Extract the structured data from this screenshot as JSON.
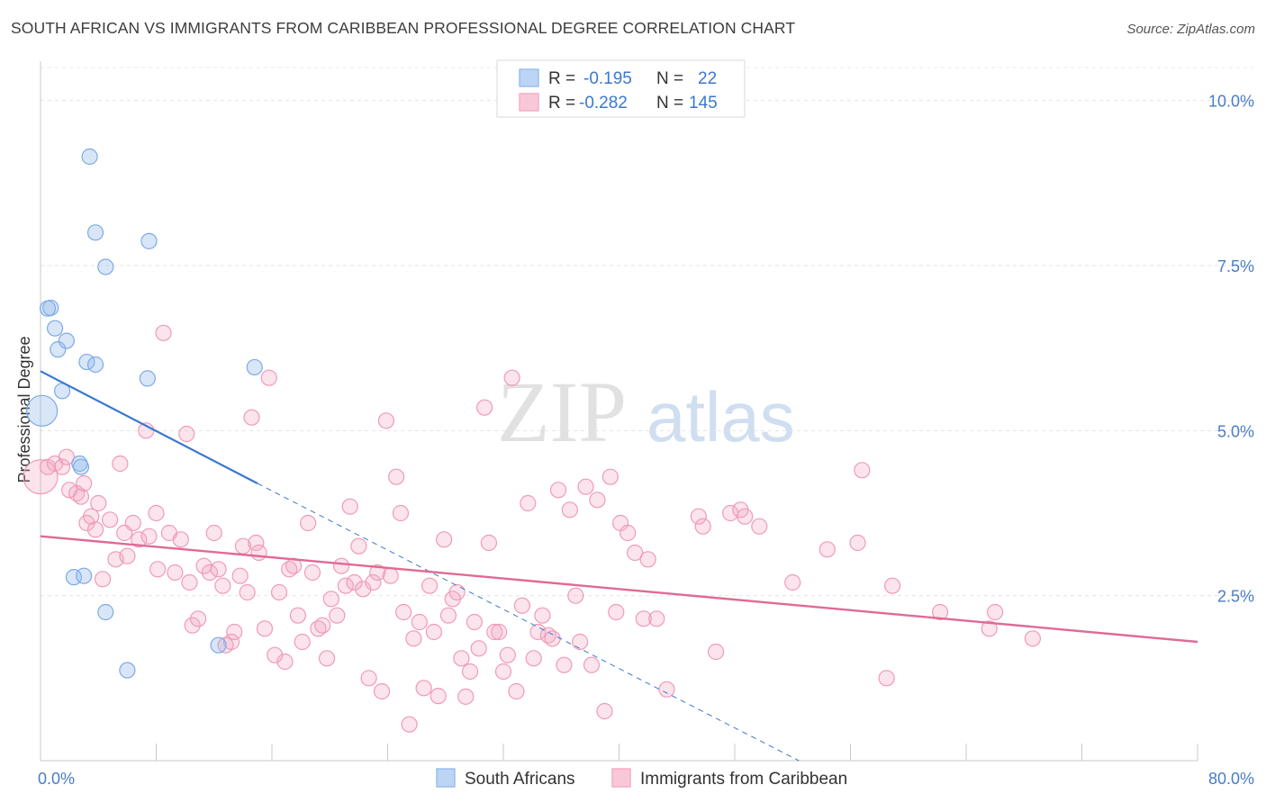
{
  "header": {
    "title": "SOUTH AFRICAN VS IMMIGRANTS FROM CARIBBEAN PROFESSIONAL DEGREE CORRELATION CHART",
    "source": "Source: ZipAtlas.com"
  },
  "watermark": {
    "zip": "ZIP",
    "atlas": "atlas"
  },
  "legend": {
    "r_label": "R =",
    "n_label": "N =",
    "rows": [
      {
        "r": "-0.195",
        "n": "22"
      },
      {
        "r": "-0.282",
        "n": "145"
      }
    ]
  },
  "chart_data": {
    "type": "scatter",
    "title": "SOUTH AFRICAN VS IMMIGRANTS FROM CARIBBEAN PROFESSIONAL DEGREE CORRELATION CHART",
    "xlabel": "",
    "ylabel": "Professional Degree",
    "xlim": [
      0,
      80
    ],
    "ylim": [
      0,
      10.5
    ],
    "x_tick_labels": [
      "0.0%",
      "80.0%"
    ],
    "y_tick_labels": [
      "2.5%",
      "5.0%",
      "7.5%",
      "10.0%"
    ],
    "y_tick_values": [
      2.5,
      5.0,
      7.5,
      10.0
    ],
    "grid": true,
    "legend_position": "bottom",
    "colors": {
      "south_africans": "#8fb8ec",
      "caribbean": "#f3a5bf",
      "blue_line": "#3a78d0",
      "pink_line": "#e06a96"
    },
    "series": [
      {
        "name": "South Africans",
        "r": -0.195,
        "n": 22,
        "trend": {
          "x0": 0,
          "y0": 5.9,
          "x1": 15,
          "y1": 4.2,
          "dash_x1": 56,
          "dash_y1": -0.4
        },
        "points": [
          [
            3.4,
            9.15
          ],
          [
            3.8,
            8.0
          ],
          [
            7.5,
            7.87
          ],
          [
            4.5,
            7.48
          ],
          [
            0.7,
            6.86
          ],
          [
            0.5,
            6.85
          ],
          [
            1.0,
            6.55
          ],
          [
            1.8,
            6.36
          ],
          [
            1.2,
            6.23
          ],
          [
            3.2,
            6.04
          ],
          [
            3.8,
            6.0
          ],
          [
            14.8,
            5.96
          ],
          [
            7.4,
            5.79
          ],
          [
            1.5,
            5.6
          ],
          [
            0.1,
            5.3
          ],
          [
            2.7,
            4.5
          ],
          [
            2.8,
            4.45
          ],
          [
            2.3,
            2.78
          ],
          [
            3.0,
            2.8
          ],
          [
            4.5,
            2.25
          ],
          [
            12.3,
            1.75
          ],
          [
            6.0,
            1.37
          ]
        ]
      },
      {
        "name": "Immigrants from Caribbean",
        "r": -0.282,
        "n": 145,
        "trend": {
          "x0": 0,
          "y0": 3.4,
          "x1": 80,
          "y1": 1.8
        },
        "points": [
          [
            0.0,
            4.3
          ],
          [
            0.5,
            4.45
          ],
          [
            1.0,
            4.5
          ],
          [
            1.5,
            4.45
          ],
          [
            1.8,
            4.6
          ],
          [
            2.0,
            4.1
          ],
          [
            2.5,
            4.05
          ],
          [
            2.8,
            4.0
          ],
          [
            3.0,
            4.2
          ],
          [
            3.2,
            3.6
          ],
          [
            3.5,
            3.7
          ],
          [
            3.8,
            3.5
          ],
          [
            4.0,
            3.9
          ],
          [
            4.3,
            2.75
          ],
          [
            4.8,
            3.65
          ],
          [
            5.2,
            3.05
          ],
          [
            5.5,
            4.5
          ],
          [
            5.8,
            3.45
          ],
          [
            6.0,
            3.1
          ],
          [
            6.4,
            3.6
          ],
          [
            6.8,
            3.35
          ],
          [
            7.3,
            5.0
          ],
          [
            7.5,
            3.4
          ],
          [
            8.0,
            3.75
          ],
          [
            8.1,
            2.9
          ],
          [
            8.5,
            6.48
          ],
          [
            8.9,
            3.45
          ],
          [
            9.3,
            2.85
          ],
          [
            9.7,
            3.35
          ],
          [
            10.1,
            4.95
          ],
          [
            10.3,
            2.7
          ],
          [
            10.5,
            2.05
          ],
          [
            10.9,
            2.15
          ],
          [
            11.3,
            2.95
          ],
          [
            11.7,
            2.85
          ],
          [
            12.0,
            3.45
          ],
          [
            12.3,
            2.9
          ],
          [
            12.6,
            2.65
          ],
          [
            12.8,
            1.75
          ],
          [
            13.2,
            1.8
          ],
          [
            13.4,
            1.95
          ],
          [
            13.8,
            2.8
          ],
          [
            14.0,
            3.25
          ],
          [
            14.3,
            2.55
          ],
          [
            14.6,
            5.2
          ],
          [
            14.9,
            3.3
          ],
          [
            15.1,
            3.15
          ],
          [
            15.5,
            2.0
          ],
          [
            15.8,
            5.8
          ],
          [
            16.2,
            1.6
          ],
          [
            16.5,
            2.55
          ],
          [
            16.9,
            1.5
          ],
          [
            17.2,
            2.9
          ],
          [
            17.5,
            2.95
          ],
          [
            17.8,
            2.2
          ],
          [
            18.1,
            1.8
          ],
          [
            18.5,
            3.6
          ],
          [
            18.8,
            2.85
          ],
          [
            19.2,
            2.0
          ],
          [
            19.5,
            2.05
          ],
          [
            19.8,
            1.55
          ],
          [
            20.1,
            2.45
          ],
          [
            20.5,
            2.2
          ],
          [
            20.8,
            2.95
          ],
          [
            21.1,
            2.65
          ],
          [
            21.4,
            3.85
          ],
          [
            21.7,
            2.7
          ],
          [
            22.0,
            3.25
          ],
          [
            22.3,
            2.6
          ],
          [
            22.7,
            1.25
          ],
          [
            23.0,
            2.7
          ],
          [
            23.3,
            2.85
          ],
          [
            23.6,
            1.05
          ],
          [
            23.9,
            5.15
          ],
          [
            24.2,
            2.8
          ],
          [
            24.6,
            4.3
          ],
          [
            24.9,
            3.75
          ],
          [
            25.1,
            2.25
          ],
          [
            25.5,
            0.55
          ],
          [
            25.8,
            1.85
          ],
          [
            26.2,
            2.1
          ],
          [
            26.5,
            1.1
          ],
          [
            26.9,
            2.65
          ],
          [
            27.2,
            1.95
          ],
          [
            27.5,
            0.98
          ],
          [
            27.9,
            3.35
          ],
          [
            28.2,
            2.2
          ],
          [
            28.5,
            2.45
          ],
          [
            28.8,
            2.55
          ],
          [
            29.1,
            1.55
          ],
          [
            29.4,
            0.97
          ],
          [
            29.7,
            1.35
          ],
          [
            30.0,
            2.1
          ],
          [
            30.3,
            1.7
          ],
          [
            30.7,
            5.35
          ],
          [
            31.0,
            3.3
          ],
          [
            31.4,
            1.95
          ],
          [
            31.7,
            1.95
          ],
          [
            32.0,
            1.35
          ],
          [
            32.3,
            1.6
          ],
          [
            32.6,
            5.8
          ],
          [
            32.9,
            1.05
          ],
          [
            33.3,
            2.35
          ],
          [
            33.7,
            3.9
          ],
          [
            34.1,
            1.55
          ],
          [
            34.4,
            1.95
          ],
          [
            34.7,
            2.2
          ],
          [
            35.1,
            1.9
          ],
          [
            35.4,
            1.85
          ],
          [
            35.8,
            4.1
          ],
          [
            36.2,
            1.45
          ],
          [
            36.6,
            3.8
          ],
          [
            37.0,
            2.5
          ],
          [
            37.3,
            1.8
          ],
          [
            37.7,
            4.15
          ],
          [
            38.1,
            1.45
          ],
          [
            38.5,
            3.95
          ],
          [
            39.0,
            0.75
          ],
          [
            39.4,
            4.3
          ],
          [
            39.8,
            2.25
          ],
          [
            40.1,
            3.6
          ],
          [
            40.6,
            3.45
          ],
          [
            41.1,
            3.15
          ],
          [
            41.7,
            2.15
          ],
          [
            42.0,
            3.05
          ],
          [
            42.6,
            2.15
          ],
          [
            43.3,
            1.08
          ],
          [
            45.5,
            3.7
          ],
          [
            45.8,
            3.55
          ],
          [
            46.7,
            1.65
          ],
          [
            47.7,
            3.75
          ],
          [
            48.4,
            3.8
          ],
          [
            48.7,
            3.7
          ],
          [
            49.7,
            3.55
          ],
          [
            52.0,
            2.7
          ],
          [
            54.4,
            3.2
          ],
          [
            56.5,
            3.3
          ],
          [
            56.8,
            4.4
          ],
          [
            58.5,
            1.25
          ],
          [
            58.9,
            2.65
          ],
          [
            62.2,
            2.25
          ],
          [
            65.6,
            2.0
          ],
          [
            66.0,
            2.25
          ],
          [
            68.6,
            1.85
          ]
        ]
      }
    ]
  },
  "bottom_legend": [
    {
      "label": "South Africans"
    },
    {
      "label": "Immigrants from Caribbean"
    }
  ]
}
